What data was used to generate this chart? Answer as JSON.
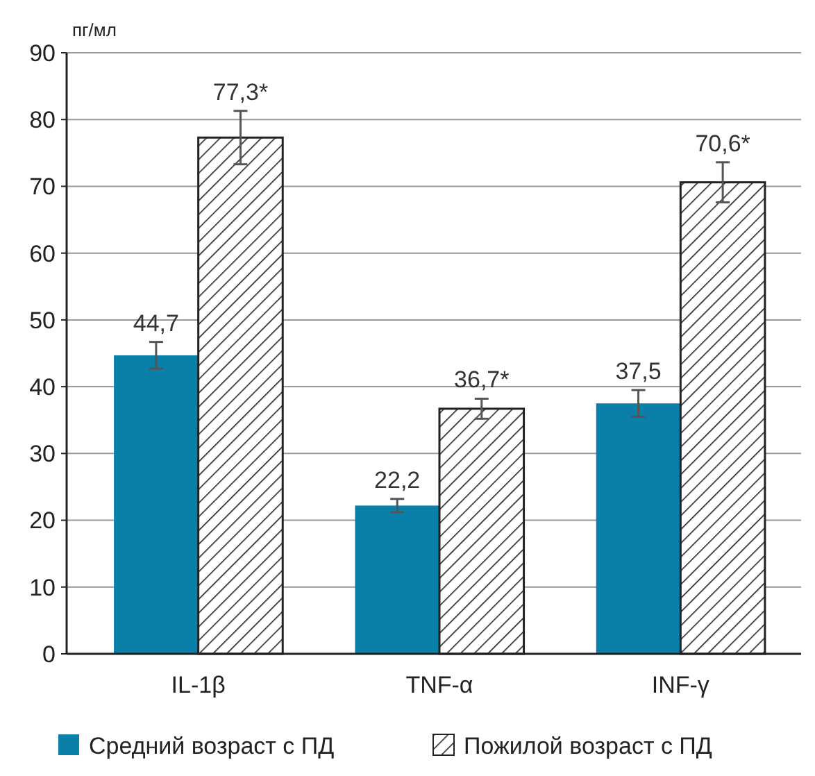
{
  "chart_data": {
    "type": "bar",
    "ylabel": "пг/мл",
    "categories": [
      "IL-1β",
      "TNF-α",
      "INF-γ"
    ],
    "series": [
      {
        "name": "Средний возраст с ПД",
        "color": "#0a7fa8",
        "values": [
          44.7,
          22.2,
          37.5
        ],
        "errors": [
          2,
          1,
          2
        ],
        "value_labels": [
          "44,7",
          "22,2",
          "37,5"
        ]
      },
      {
        "name": "Пожилой возраст с ПД",
        "color": "#222222",
        "values": [
          77.3,
          36.7,
          70.6
        ],
        "errors": [
          4,
          1.5,
          3
        ],
        "value_labels": [
          "77,3*",
          "36,7*",
          "70,6*"
        ]
      }
    ],
    "ylim": [
      0,
      90
    ],
    "yticks": [
      0,
      10,
      20,
      30,
      40,
      50,
      60,
      70,
      80,
      90
    ],
    "grid": "y",
    "legend": "bottom"
  }
}
